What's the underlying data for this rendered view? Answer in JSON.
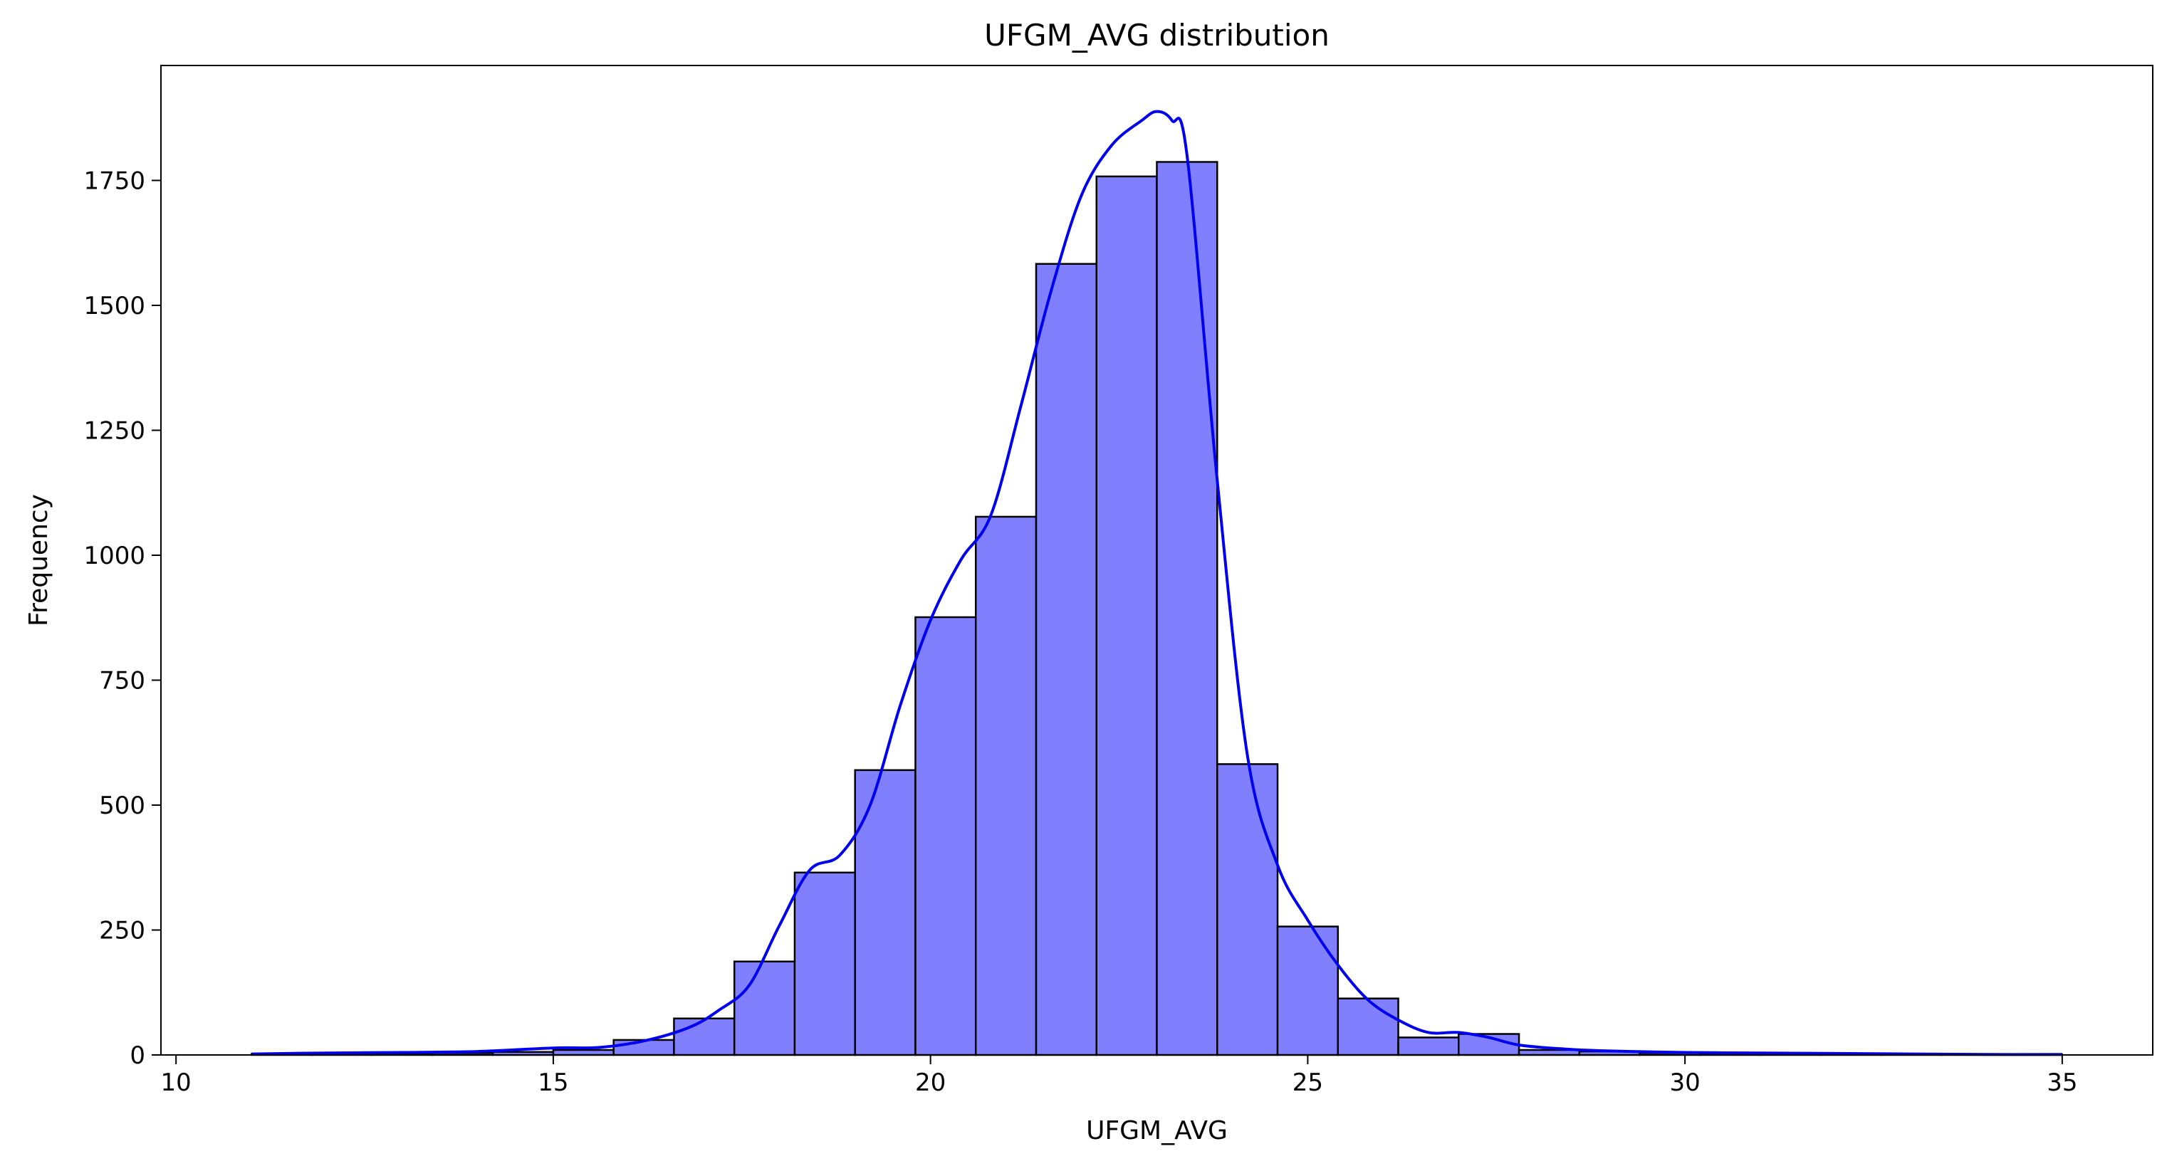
{
  "chart_data": {
    "type": "bar",
    "title": "UFGM_AVG distribution",
    "xlabel": "UFGM_AVG",
    "ylabel": "Frequency",
    "xlim": [
      9.8,
      36.2
    ],
    "ylim": [
      0,
      1980
    ],
    "xticks": [
      10,
      15,
      20,
      25,
      30,
      35
    ],
    "yticks": [
      0,
      250,
      500,
      750,
      1000,
      1250,
      1500,
      1750
    ],
    "grid": false,
    "colors": {
      "bar_fill": "#8080ff",
      "bar_edge": "#000000",
      "kde": "#0000ee"
    },
    "bin_edges": [
      11.0,
      11.8,
      12.6,
      13.4,
      14.2,
      15.0,
      15.8,
      16.6,
      17.4,
      18.2,
      19.0,
      19.8,
      20.6,
      21.4,
      22.2,
      23.0,
      23.8,
      24.6,
      25.4,
      26.2,
      27.0,
      27.8,
      28.6,
      29.4,
      30.2,
      31.0,
      31.8,
      32.6,
      33.4,
      34.2,
      35.0
    ],
    "values": [
      2,
      3,
      3,
      4,
      6,
      10,
      30,
      73,
      187,
      365,
      570,
      876,
      1077,
      1583,
      1758,
      1787,
      582,
      257,
      113,
      35,
      42,
      10,
      7,
      4,
      3,
      2,
      2,
      1,
      1,
      1
    ],
    "kde": {
      "x": [
        11.0,
        12.0,
        13.0,
        14.0,
        15.0,
        15.6,
        16.2,
        16.8,
        17.2,
        17.6,
        18.0,
        18.4,
        18.8,
        19.2,
        19.6,
        20.0,
        20.4,
        20.8,
        21.2,
        21.6,
        22.0,
        22.4,
        22.8,
        23.0,
        23.2,
        23.4,
        23.8,
        24.2,
        24.6,
        25.0,
        25.4,
        25.8,
        26.2,
        26.6,
        27.0,
        27.4,
        27.8,
        28.4,
        29.0,
        30.0,
        31.0,
        32.0,
        33.0,
        34.0,
        35.0
      ],
      "y": [
        2,
        4,
        5,
        7,
        14,
        15,
        28,
        55,
        90,
        140,
        260,
        370,
        400,
        500,
        700,
        870,
        990,
        1080,
        1300,
        1530,
        1720,
        1820,
        1870,
        1888,
        1870,
        1800,
        1150,
        600,
        380,
        270,
        180,
        110,
        70,
        45,
        45,
        35,
        20,
        12,
        8,
        5,
        4,
        3,
        2,
        1,
        1
      ]
    }
  }
}
